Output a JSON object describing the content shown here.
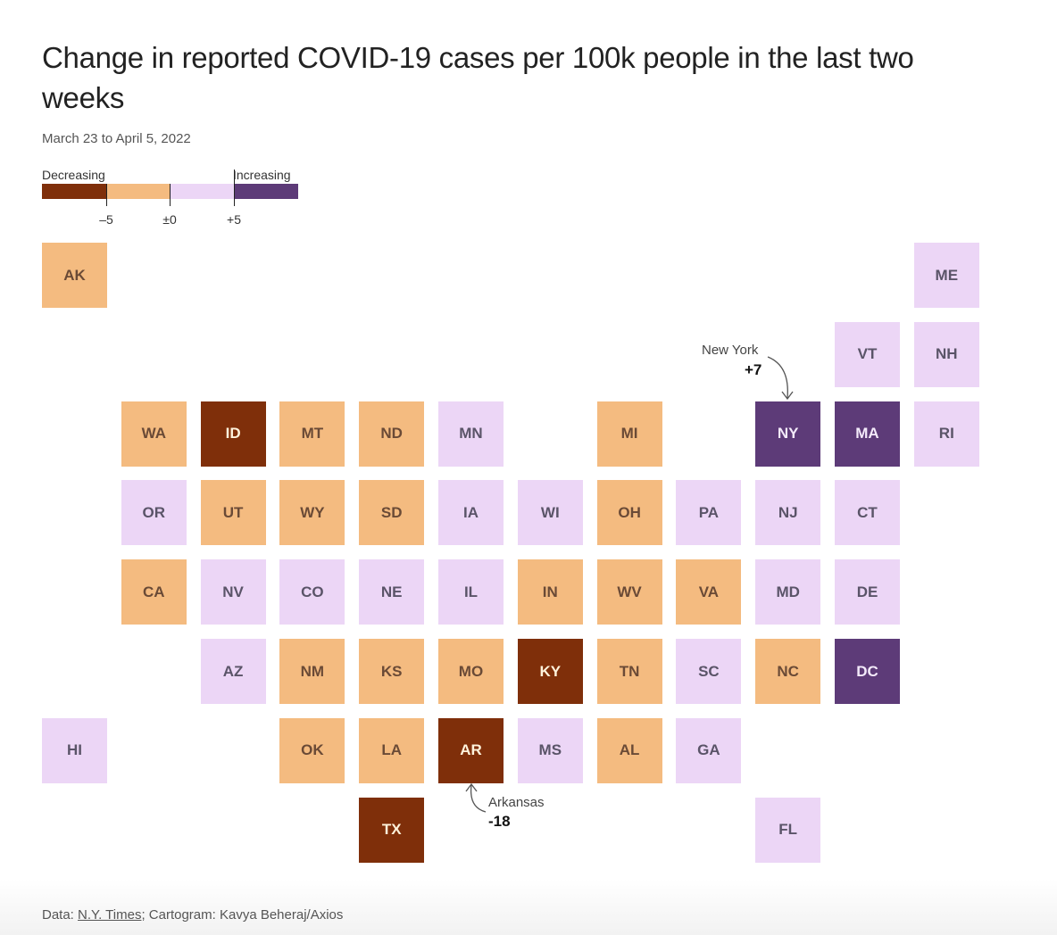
{
  "title": "Change in reported COVID-19 cases per 100k people in the last two weeks",
  "subtitle": "March 23 to April 5, 2022",
  "legend": {
    "decreasing_label": "Decreasing",
    "increasing_label": "Increasing",
    "ticks": [
      "–5",
      "±0",
      "+5"
    ],
    "colors": [
      "#7f2f0a",
      "#f4bb80",
      "#ecd6f6",
      "#5d3b78"
    ]
  },
  "colors": {
    "strong_decrease": "#7f2f0a",
    "decrease": "#f4bb80",
    "increase": "#ecd6f6",
    "strong_increase": "#5d3b78"
  },
  "chart_data": {
    "type": "tile-grid cartogram",
    "bins": [
      "below –5",
      "–5 to ±0",
      "±0 to +5",
      "above +5"
    ],
    "states": [
      {
        "abbr": "AK",
        "bin": 1
      },
      {
        "abbr": "ME",
        "bin": 2
      },
      {
        "abbr": "VT",
        "bin": 2
      },
      {
        "abbr": "NH",
        "bin": 2
      },
      {
        "abbr": "WA",
        "bin": 1
      },
      {
        "abbr": "ID",
        "bin": 0
      },
      {
        "abbr": "MT",
        "bin": 1
      },
      {
        "abbr": "ND",
        "bin": 1
      },
      {
        "abbr": "MN",
        "bin": 2
      },
      {
        "abbr": "MI",
        "bin": 1
      },
      {
        "abbr": "NY",
        "bin": 3
      },
      {
        "abbr": "MA",
        "bin": 3
      },
      {
        "abbr": "RI",
        "bin": 2
      },
      {
        "abbr": "OR",
        "bin": 2
      },
      {
        "abbr": "UT",
        "bin": 1
      },
      {
        "abbr": "WY",
        "bin": 1
      },
      {
        "abbr": "SD",
        "bin": 1
      },
      {
        "abbr": "IA",
        "bin": 2
      },
      {
        "abbr": "WI",
        "bin": 2
      },
      {
        "abbr": "OH",
        "bin": 1
      },
      {
        "abbr": "PA",
        "bin": 2
      },
      {
        "abbr": "NJ",
        "bin": 2
      },
      {
        "abbr": "CT",
        "bin": 2
      },
      {
        "abbr": "CA",
        "bin": 1
      },
      {
        "abbr": "NV",
        "bin": 2
      },
      {
        "abbr": "CO",
        "bin": 2
      },
      {
        "abbr": "NE",
        "bin": 2
      },
      {
        "abbr": "IL",
        "bin": 2
      },
      {
        "abbr": "IN",
        "bin": 1
      },
      {
        "abbr": "WV",
        "bin": 1
      },
      {
        "abbr": "VA",
        "bin": 1
      },
      {
        "abbr": "MD",
        "bin": 2
      },
      {
        "abbr": "DE",
        "bin": 2
      },
      {
        "abbr": "AZ",
        "bin": 2
      },
      {
        "abbr": "NM",
        "bin": 1
      },
      {
        "abbr": "KS",
        "bin": 1
      },
      {
        "abbr": "MO",
        "bin": 1
      },
      {
        "abbr": "KY",
        "bin": 0
      },
      {
        "abbr": "TN",
        "bin": 1
      },
      {
        "abbr": "SC",
        "bin": 2
      },
      {
        "abbr": "NC",
        "bin": 1
      },
      {
        "abbr": "DC",
        "bin": 3
      },
      {
        "abbr": "HI",
        "bin": 2
      },
      {
        "abbr": "OK",
        "bin": 1
      },
      {
        "abbr": "LA",
        "bin": 1
      },
      {
        "abbr": "AR",
        "bin": 0
      },
      {
        "abbr": "MS",
        "bin": 2
      },
      {
        "abbr": "AL",
        "bin": 1
      },
      {
        "abbr": "GA",
        "bin": 2
      },
      {
        "abbr": "TX",
        "bin": 0
      },
      {
        "abbr": "FL",
        "bin": 2
      }
    ],
    "annotations": [
      {
        "state": "NY",
        "name": "New York",
        "value": "+7"
      },
      {
        "state": "AR",
        "name": "Arkansas",
        "value": "-18"
      }
    ]
  },
  "footer": {
    "data_prefix": "Data: ",
    "source_link": "N.Y. Times",
    "credit": "; Cartogram: Kavya Beheraj/Axios"
  }
}
